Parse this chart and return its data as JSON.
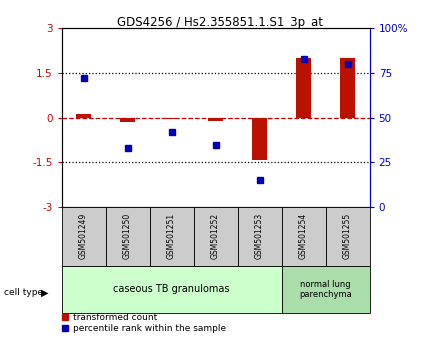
{
  "title": "GDS4256 / Hs2.355851.1.S1_3p_at",
  "samples": [
    "GSM501249",
    "GSM501250",
    "GSM501251",
    "GSM501252",
    "GSM501253",
    "GSM501254",
    "GSM501255"
  ],
  "transformed_counts": [
    0.12,
    -0.15,
    -0.05,
    -0.12,
    -1.42,
    2.0,
    2.0
  ],
  "percentile_ranks": [
    72,
    33,
    42,
    35,
    15,
    83,
    80
  ],
  "ylim_left": [
    -3,
    3
  ],
  "ylim_right": [
    0,
    100
  ],
  "yticks_left": [
    -3,
    -1.5,
    0,
    1.5,
    3
  ],
  "yticks_right": [
    0,
    25,
    50,
    75,
    100
  ],
  "ytick_labels_left": [
    "-3",
    "-1.5",
    "0",
    "1.5",
    "3"
  ],
  "ytick_labels_right": [
    "0",
    "25",
    "50",
    "75",
    "100%"
  ],
  "hlines_dotted": [
    1.5,
    -1.5
  ],
  "hline_dashed": 0,
  "bar_color": "#bb1100",
  "dot_color": "#0000bb",
  "group1_n": 5,
  "group2_n": 2,
  "group1_label": "caseous TB granulomas",
  "group2_label": "normal lung\nparenchyma",
  "cell_type_label": "cell type",
  "legend_bar_label": "transformed count",
  "legend_dot_label": "percentile rank within the sample",
  "sample_box_color": "#cccccc",
  "group1_box_color": "#ccffcc",
  "group2_box_color": "#aaddaa"
}
